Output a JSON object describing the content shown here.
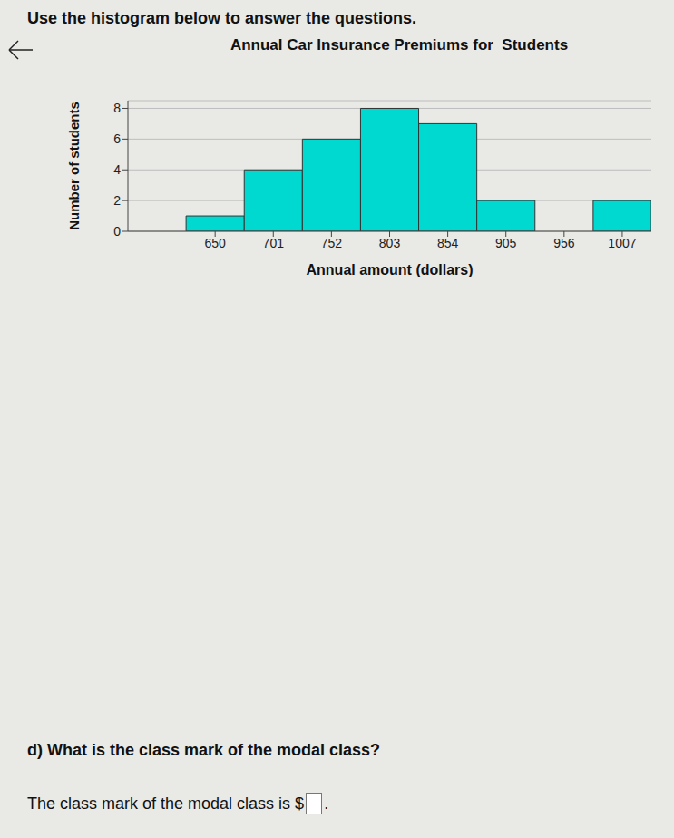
{
  "instruction": "Use the histogram below to answer the questions.",
  "question": "d) What is the class mark of the modal class?",
  "answer_prefix": "The class mark of the modal class is $",
  "answer_suffix": ".",
  "chart_data": {
    "type": "histogram",
    "title": "Annual Car Insurance Premiums for  Students",
    "x_label": "Annual amount (dollars)",
    "y_label": "Number of students",
    "bins": [
      624.5,
      675.5,
      726.5,
      777.5,
      828.5,
      879.5,
      930.5,
      981.5,
      1032.5
    ],
    "values": [
      1,
      4,
      6,
      8,
      7,
      2,
      0,
      2
    ],
    "color": "#00d9d0",
    "xlim": [
      573.5,
      1032.5
    ],
    "xticks": [
      650,
      701,
      752,
      803,
      854,
      905,
      956,
      1007
    ],
    "ylim": [
      0,
      8.5
    ],
    "yticks": [
      0,
      2,
      4,
      6,
      8
    ],
    "grid": true
  }
}
